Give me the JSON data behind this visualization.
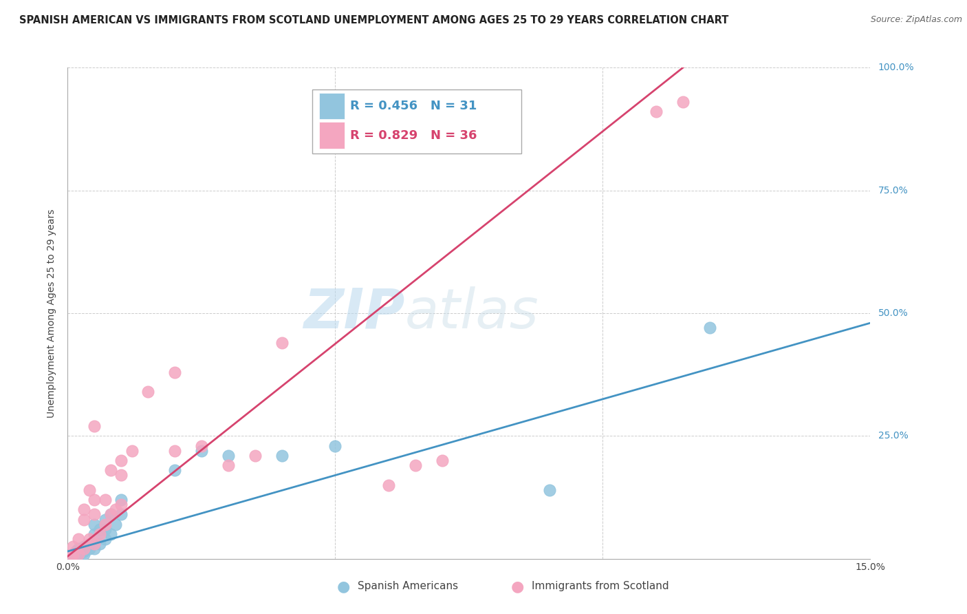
{
  "title": "SPANISH AMERICAN VS IMMIGRANTS FROM SCOTLAND UNEMPLOYMENT AMONG AGES 25 TO 29 YEARS CORRELATION CHART",
  "source": "Source: ZipAtlas.com",
  "ylabel": "Unemployment Among Ages 25 to 29 years",
  "xlim": [
    0.0,
    0.15
  ],
  "ylim": [
    0.0,
    1.0
  ],
  "blue_R": 0.456,
  "blue_N": 31,
  "pink_R": 0.829,
  "pink_N": 36,
  "legend1_label": "Spanish Americans",
  "legend2_label": "Immigrants from Scotland",
  "blue_color": "#92c5de",
  "pink_color": "#f4a6c0",
  "blue_line_color": "#4393c3",
  "pink_line_color": "#d6436e",
  "watermark_zip": "ZIP",
  "watermark_atlas": "atlas",
  "blue_scatter_x": [
    0.0008,
    0.001,
    0.0015,
    0.002,
    0.002,
    0.003,
    0.003,
    0.003,
    0.004,
    0.004,
    0.005,
    0.005,
    0.005,
    0.005,
    0.006,
    0.006,
    0.007,
    0.007,
    0.007,
    0.008,
    0.008,
    0.009,
    0.01,
    0.01,
    0.02,
    0.025,
    0.03,
    0.04,
    0.05,
    0.09,
    0.12
  ],
  "blue_scatter_y": [
    0.005,
    0.01,
    0.015,
    0.008,
    0.02,
    0.01,
    0.015,
    0.025,
    0.02,
    0.03,
    0.02,
    0.03,
    0.05,
    0.07,
    0.03,
    0.06,
    0.04,
    0.06,
    0.08,
    0.05,
    0.09,
    0.07,
    0.09,
    0.12,
    0.18,
    0.22,
    0.21,
    0.21,
    0.23,
    0.14,
    0.47
  ],
  "pink_scatter_x": [
    0.0005,
    0.001,
    0.001,
    0.002,
    0.002,
    0.003,
    0.003,
    0.003,
    0.004,
    0.004,
    0.005,
    0.005,
    0.005,
    0.005,
    0.006,
    0.007,
    0.007,
    0.008,
    0.008,
    0.009,
    0.01,
    0.01,
    0.01,
    0.012,
    0.015,
    0.02,
    0.02,
    0.025,
    0.03,
    0.035,
    0.04,
    0.06,
    0.065,
    0.07,
    0.11,
    0.115
  ],
  "pink_scatter_y": [
    0.005,
    0.01,
    0.025,
    0.01,
    0.04,
    0.02,
    0.08,
    0.1,
    0.04,
    0.14,
    0.03,
    0.09,
    0.12,
    0.27,
    0.05,
    0.07,
    0.12,
    0.09,
    0.18,
    0.1,
    0.11,
    0.17,
    0.2,
    0.22,
    0.34,
    0.22,
    0.38,
    0.23,
    0.19,
    0.21,
    0.44,
    0.15,
    0.19,
    0.2,
    0.91,
    0.93
  ],
  "blue_trendline_x": [
    0.0,
    0.15
  ],
  "blue_trendline_y": [
    0.015,
    0.48
  ],
  "pink_trendline_x": [
    0.0,
    0.115
  ],
  "pink_trendline_y": [
    0.005,
    1.0
  ],
  "background_color": "#ffffff",
  "grid_color": "#cccccc",
  "title_fontsize": 10.5,
  "axis_label_fontsize": 10,
  "tick_fontsize": 10,
  "legend_fontsize": 13
}
